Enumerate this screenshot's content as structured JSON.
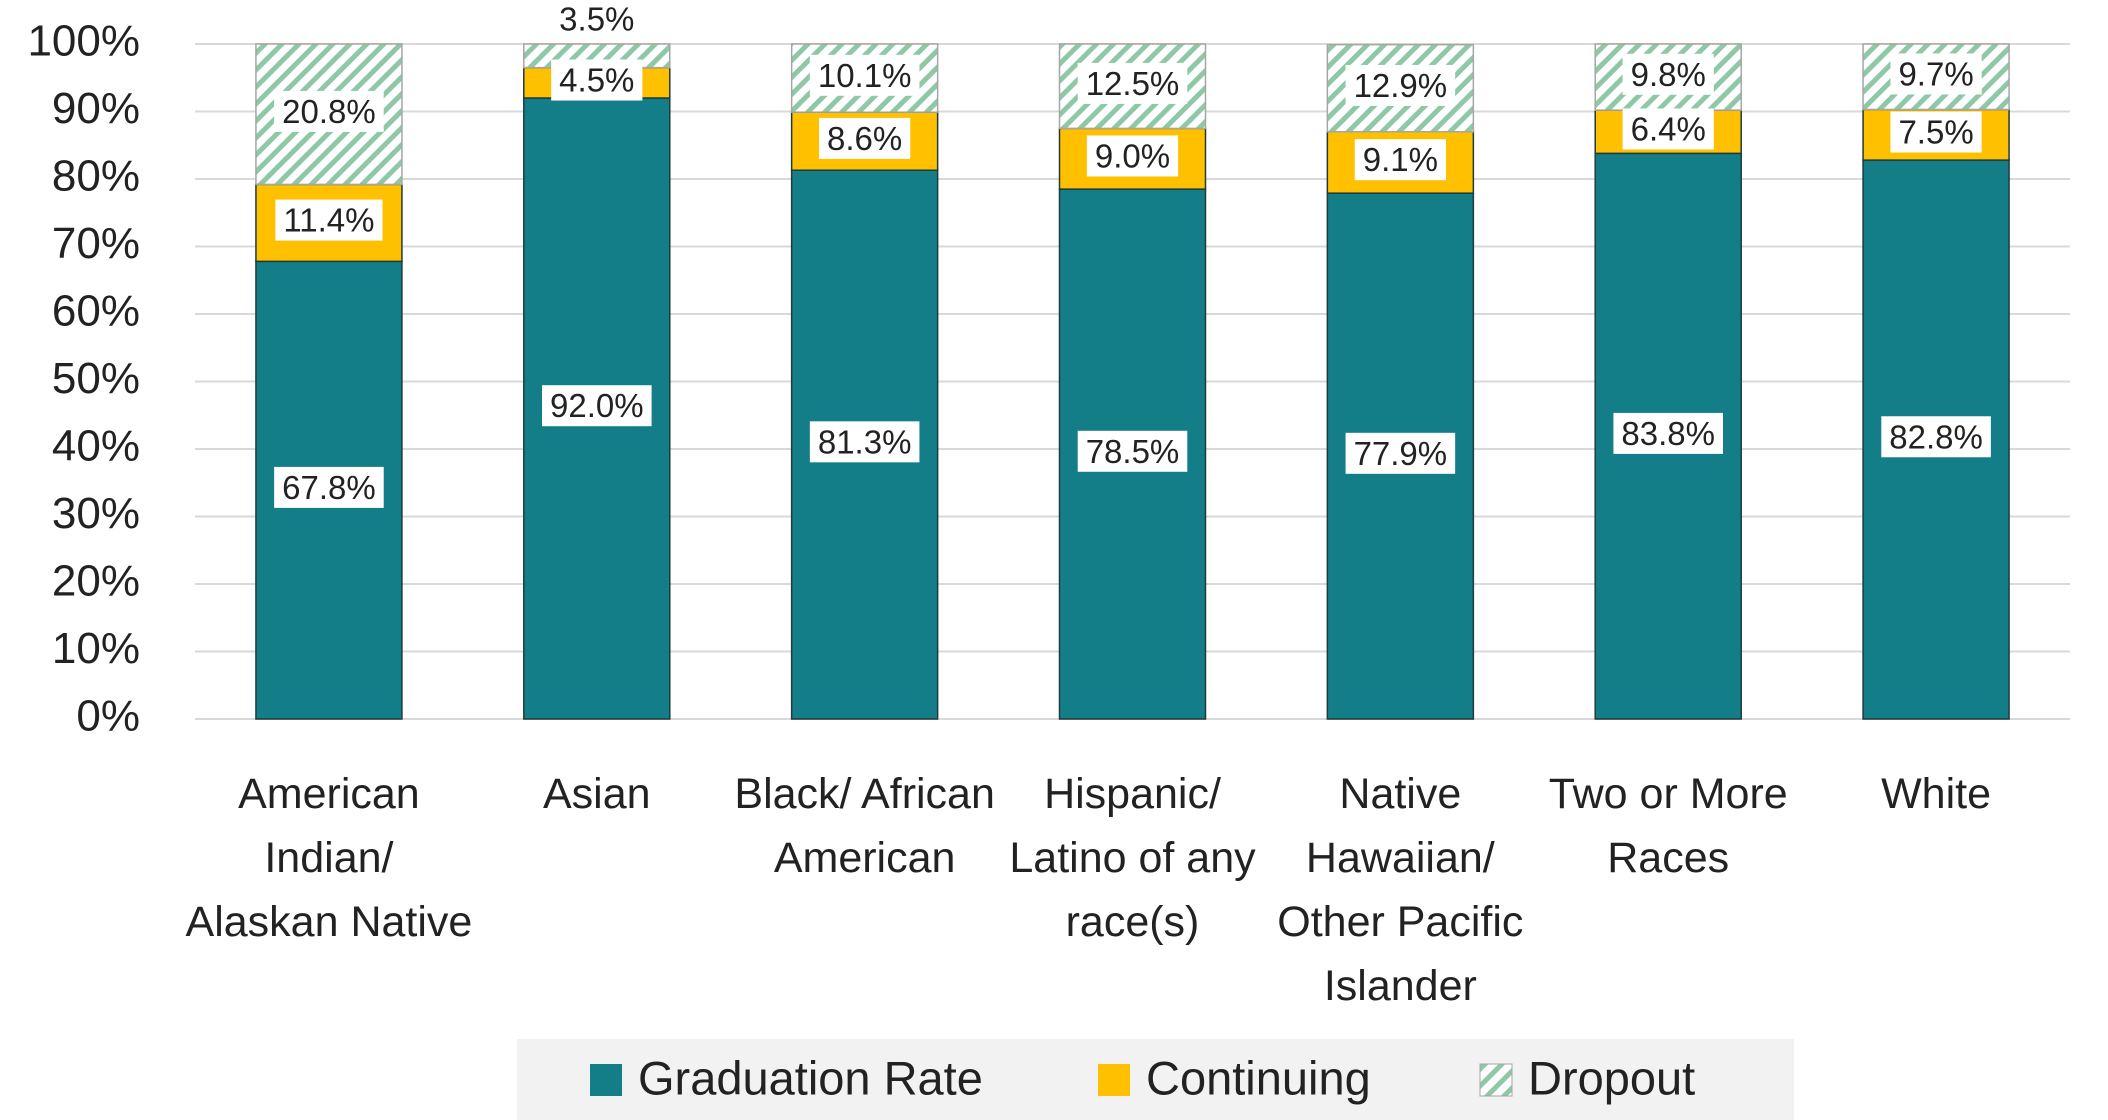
{
  "chart_data": {
    "type": "stacked_bar",
    "categories": [
      "American Indian/ Alaskan Native",
      "Asian",
      "Black/ African American",
      "Hispanic/ Latino of any race(s)",
      "Native Hawaiian/ Other Pacific Islander",
      "Two or More Races",
      "White"
    ],
    "series": [
      {
        "name": "Graduation Rate",
        "color": "#137d88",
        "values": [
          67.8,
          92.0,
          81.3,
          78.5,
          77.9,
          83.8,
          82.8
        ],
        "value_labels": [
          "67.8%",
          "92.0%",
          "81.3%",
          "78.5%",
          "77.9%",
          "83.8%",
          "82.8%"
        ]
      },
      {
        "name": "Continuing",
        "color": "#ffc000",
        "values": [
          11.4,
          4.5,
          8.6,
          9.0,
          9.1,
          6.4,
          7.5
        ],
        "value_labels": [
          "11.4%",
          "4.5%",
          "8.6%",
          "9.0%",
          "9.1%",
          "6.4%",
          "7.5%"
        ]
      },
      {
        "name": "Dropout",
        "color": "#8fc8a6",
        "pattern": "hatch",
        "values": [
          20.8,
          3.5,
          10.1,
          12.5,
          12.9,
          9.8,
          9.7
        ],
        "value_labels": [
          "20.8%",
          "3.5%",
          "10.1%",
          "12.5%",
          "12.9%",
          "9.8%",
          "9.7%"
        ]
      }
    ],
    "ylim": [
      0,
      100
    ],
    "yticks": [
      {
        "value": 0,
        "label": "0%"
      },
      {
        "value": 10,
        "label": "10%"
      },
      {
        "value": 20,
        "label": "20%"
      },
      {
        "value": 30,
        "label": "30%"
      },
      {
        "value": 40,
        "label": "40%"
      },
      {
        "value": 50,
        "label": "50%"
      },
      {
        "value": 60,
        "label": "60%"
      },
      {
        "value": 70,
        "label": "70%"
      },
      {
        "value": 80,
        "label": "80%"
      },
      {
        "value": 90,
        "label": "90%"
      },
      {
        "value": 100,
        "label": "100%"
      }
    ],
    "grid": true,
    "legend": "bottom"
  }
}
